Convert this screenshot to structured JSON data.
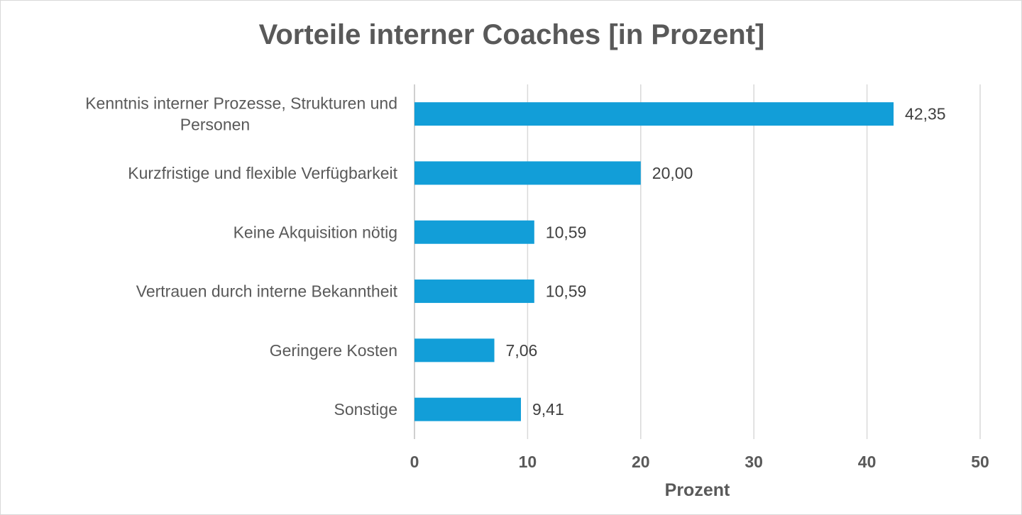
{
  "chart_data": {
    "type": "bar",
    "orientation": "horizontal",
    "title": "Vorteile interner Coaches [in Prozent]",
    "xlabel": "Prozent",
    "ylabel": "",
    "categories": [
      [
        "Kenntnis interner Prozesse, Strukturen und",
        "Personen"
      ],
      [
        "Kurzfristige und flexible Verfügbarkeit"
      ],
      [
        "Keine Akquisition nötig"
      ],
      [
        "Vertrauen durch interne Bekanntheit"
      ],
      [
        "Geringere Kosten"
      ],
      [
        "Sonstige"
      ]
    ],
    "values": [
      42.35,
      20.0,
      10.59,
      10.59,
      7.06,
      9.41
    ],
    "value_labels": [
      "42,35",
      "20,00",
      "10,59",
      "10,59",
      "7,06",
      "9,41"
    ],
    "xlim": [
      0,
      50
    ],
    "xticks": [
      0,
      10,
      20,
      30,
      40,
      50
    ],
    "grid": "vertical",
    "legend": "none",
    "bar_color": "#129ED8"
  }
}
